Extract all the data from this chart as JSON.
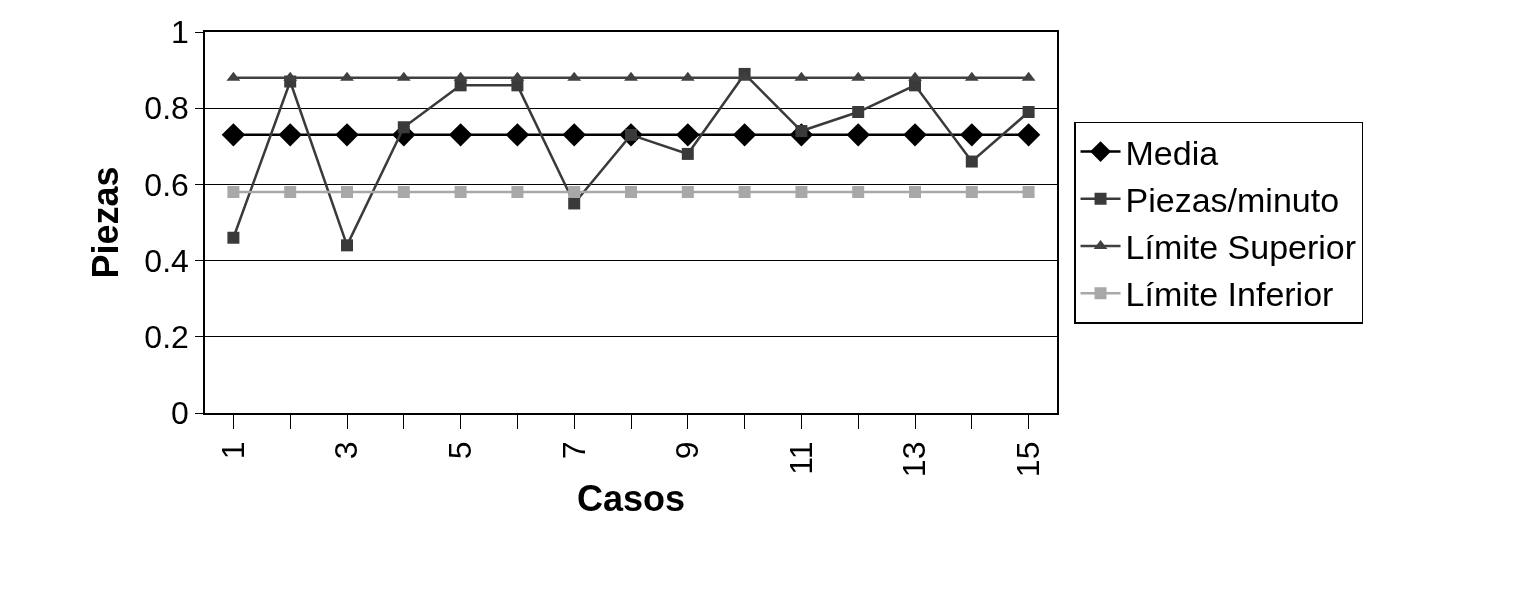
{
  "chart_data": {
    "type": "line",
    "xlabel": "Casos",
    "ylabel": "Piezas",
    "categories": [
      "1",
      null,
      "3",
      null,
      "5",
      null,
      "7",
      null,
      "9",
      null,
      "11",
      null,
      "13",
      null,
      "15"
    ],
    "series": [
      {
        "name": "Media",
        "color": "#000000",
        "marker": "diamond",
        "values": [
          0.73,
          0.73,
          0.73,
          0.73,
          0.73,
          0.73,
          0.73,
          0.73,
          0.73,
          0.73,
          0.73,
          0.73,
          0.73,
          0.73,
          0.73
        ]
      },
      {
        "name": "Piezas/minuto",
        "color": "#3a3a3a",
        "marker": "square",
        "values": [
          0.46,
          0.87,
          0.44,
          0.75,
          0.86,
          0.86,
          0.55,
          0.73,
          0.68,
          0.89,
          0.74,
          0.79,
          0.86,
          0.66,
          0.79
        ]
      },
      {
        "name": "Límite Superior",
        "color": "#404040",
        "marker": "triangle",
        "values": [
          0.88,
          0.88,
          0.88,
          0.88,
          0.88,
          0.88,
          0.88,
          0.88,
          0.88,
          0.88,
          0.88,
          0.88,
          0.88,
          0.88,
          0.88
        ]
      },
      {
        "name": "Límite Inferior",
        "color": "#a8a8a8",
        "marker": "square",
        "values": [
          0.58,
          0.58,
          0.58,
          0.58,
          0.58,
          0.58,
          0.58,
          0.58,
          0.58,
          0.58,
          0.58,
          0.58,
          0.58,
          0.58,
          0.58
        ]
      }
    ],
    "ylim": [
      0,
      1
    ],
    "yticks": [
      0,
      0.2,
      0.4,
      0.6,
      0.8,
      1
    ],
    "grid": "y",
    "legend": "right",
    "line_style": "solid"
  }
}
